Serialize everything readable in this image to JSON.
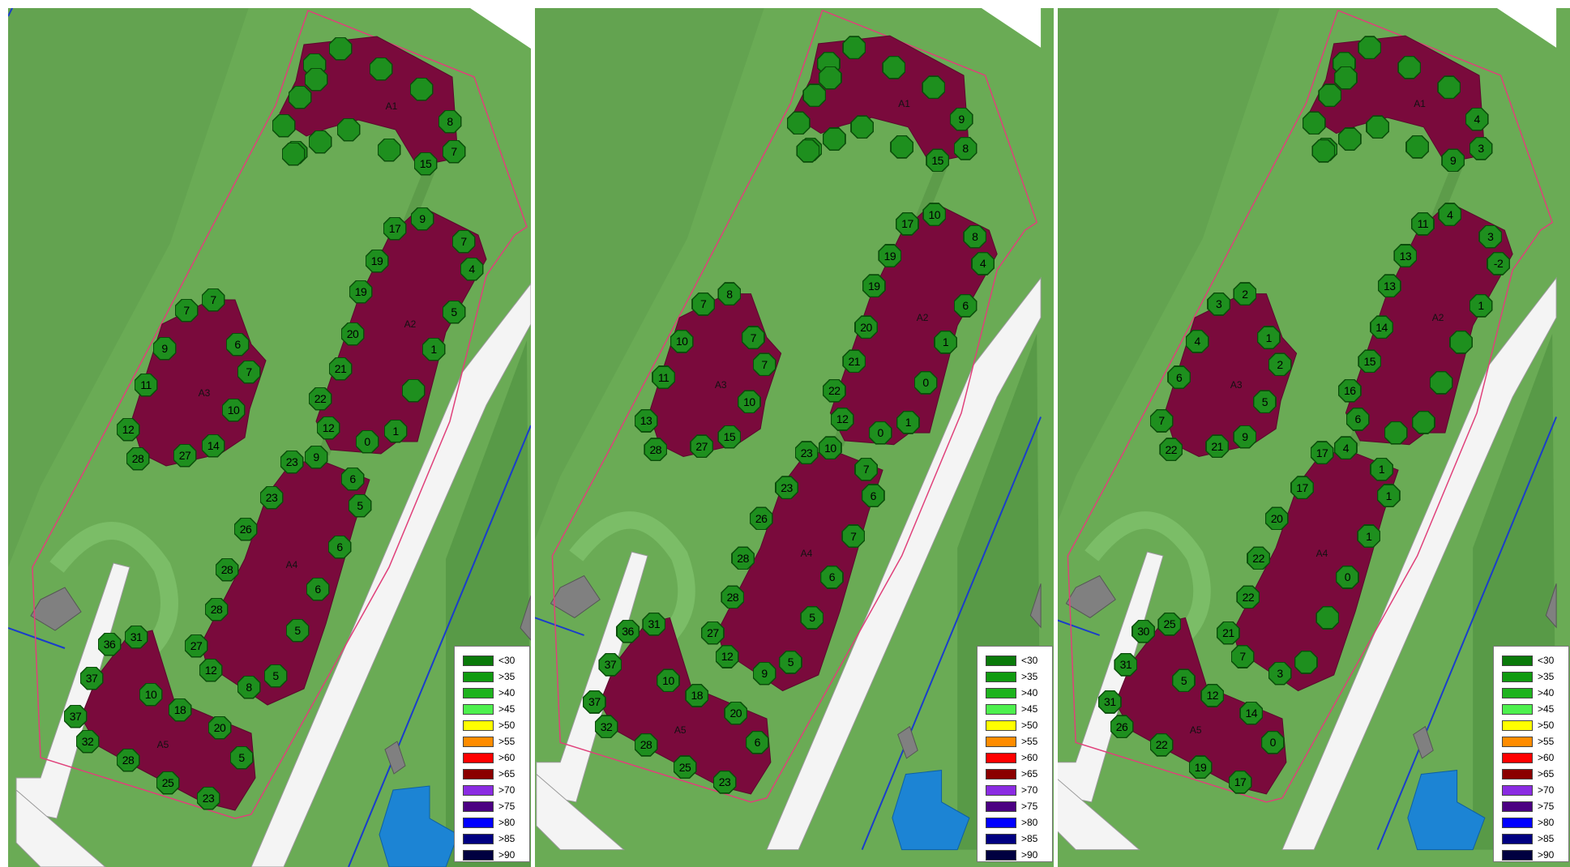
{
  "legend": [
    {
      "label": "<30",
      "color": "#0a7a0a"
    },
    {
      "label": ">35",
      "color": "#109a10"
    },
    {
      "label": ">40",
      "color": "#1db31d"
    },
    {
      "label": ">45",
      "color": "#4df04d"
    },
    {
      "label": ">50",
      "color": "#ffff00"
    },
    {
      "label": ">55",
      "color": "#ff8c00"
    },
    {
      "label": ">60",
      "color": "#ff0000"
    },
    {
      "label": ">65",
      "color": "#8b0000"
    },
    {
      "label": ">70",
      "color": "#8a2be2"
    },
    {
      "label": ">75",
      "color": "#4b0082"
    },
    {
      "label": ">80",
      "color": "#0000ff"
    },
    {
      "label": ">85",
      "color": "#000080"
    },
    {
      "label": ">90",
      "color": "#000040"
    }
  ],
  "buildings": [
    "A1",
    "A2",
    "A3",
    "A4",
    "A5"
  ],
  "panels": [
    {
      "markers": {
        "A1": [
          "",
          "",
          "",
          "",
          "",
          "",
          "",
          "",
          "",
          "",
          "",
          "",
          "8",
          "7",
          "15"
        ],
        "A2": [
          "9",
          "17",
          "7",
          "4",
          "19",
          "19",
          "5",
          "20",
          "1",
          "21",
          "",
          "22",
          "12",
          "0",
          "1"
        ],
        "A3": [
          "7",
          "7",
          "9",
          "6",
          "7",
          "11",
          "10",
          "12",
          "28",
          "27",
          "14"
        ],
        "A4": [
          "23",
          "9",
          "6",
          "23",
          "5",
          "26",
          "6",
          "28",
          "6",
          "28",
          "5",
          "27",
          "12",
          "8",
          "5"
        ],
        "A5": [
          "31",
          "36",
          "37",
          "10",
          "18",
          "37",
          "20",
          "32",
          "28",
          "5",
          "25",
          "23"
        ]
      }
    },
    {
      "markers": {
        "A1": [
          "",
          "",
          "",
          "",
          "",
          "",
          "",
          "",
          "",
          "",
          "",
          "",
          "9",
          "8",
          "15"
        ],
        "A2": [
          "10",
          "17",
          "8",
          "4",
          "19",
          "19",
          "6",
          "20",
          "1",
          "21",
          "0",
          "22",
          "12",
          "0",
          "1"
        ],
        "A3": [
          "8",
          "7",
          "10",
          "7",
          "7",
          "11",
          "10",
          "13",
          "28",
          "27",
          "15"
        ],
        "A4": [
          "23",
          "10",
          "7",
          "23",
          "6",
          "26",
          "7",
          "28",
          "6",
          "28",
          "5",
          "27",
          "12",
          "9",
          "5"
        ],
        "A5": [
          "31",
          "36",
          "37",
          "10",
          "18",
          "37",
          "20",
          "32",
          "28",
          "6",
          "25",
          "23"
        ]
      }
    },
    {
      "markers": {
        "A1": [
          "",
          "",
          "",
          "",
          "",
          "",
          "",
          "",
          "",
          "",
          "",
          "",
          "4",
          "3",
          "9"
        ],
        "A2": [
          "4",
          "11",
          "3",
          "-2",
          "13",
          "13",
          "1",
          "14",
          "",
          "15",
          "",
          "16",
          "6",
          "",
          ""
        ],
        "A3": [
          "2",
          "3",
          "4",
          "1",
          "2",
          "6",
          "5",
          "7",
          "22",
          "21",
          "9"
        ],
        "A4": [
          "17",
          "4",
          "1",
          "17",
          "1",
          "20",
          "1",
          "22",
          "0",
          "22",
          "",
          "21",
          "7",
          "3",
          ""
        ],
        "A5": [
          "25",
          "30",
          "31",
          "5",
          "12",
          "31",
          "14",
          "26",
          "22",
          "0",
          "19",
          "17"
        ]
      }
    }
  ]
}
